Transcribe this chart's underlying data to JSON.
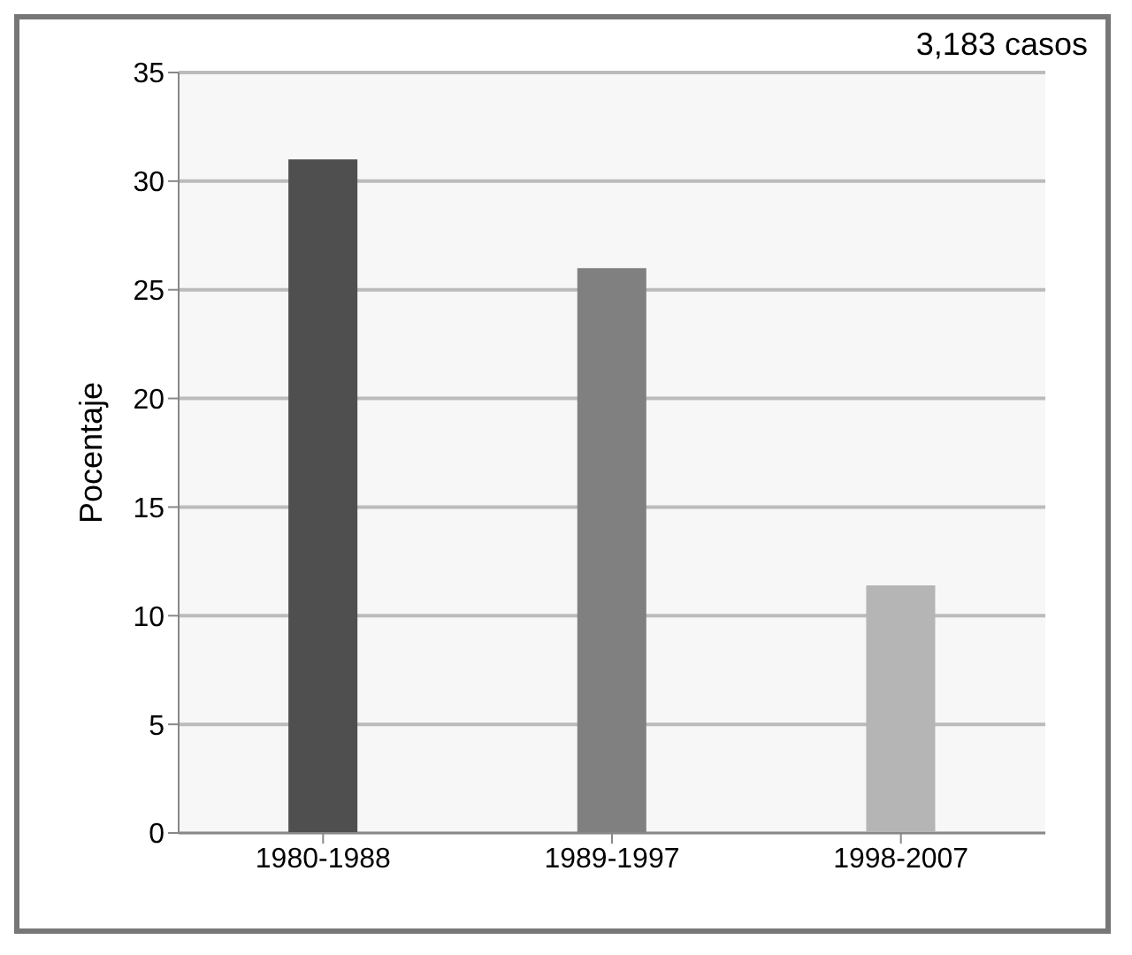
{
  "chart_data": {
    "type": "bar",
    "annotations": [
      "3,183 casos"
    ],
    "ylabel": "Pocentaje",
    "categories": [
      "1980-1988",
      "1989-1997",
      "1998-2007"
    ],
    "values": [
      31,
      26,
      11.4
    ],
    "colors": [
      "#4f4f4f",
      "#808080",
      "#b5b5b5"
    ],
    "ylim": [
      0,
      35
    ],
    "yticks": [
      0,
      5,
      10,
      15,
      20,
      25,
      30,
      35
    ],
    "grid": "y"
  }
}
